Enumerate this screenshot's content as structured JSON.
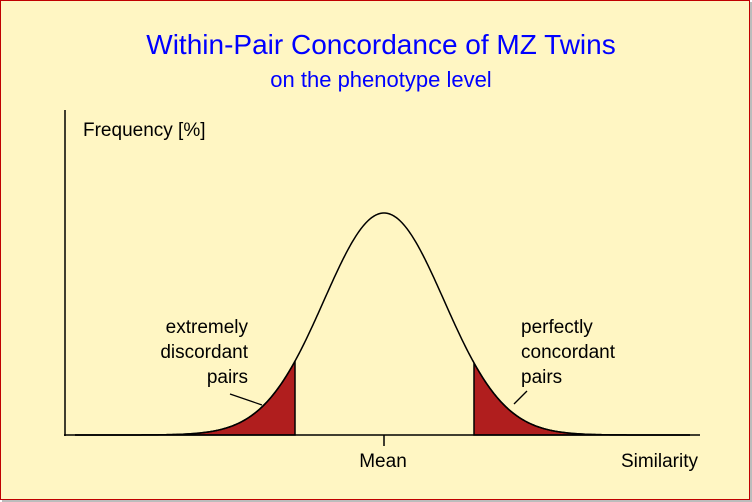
{
  "title": "Within-Pair Concordance of MZ Twins",
  "subtitle": "on the phenotype level",
  "y_axis_label": "Frequency [%]",
  "x_axis_label": "Similarity",
  "mean_label": "Mean",
  "left_region_label": [
    "extremely",
    "discordant",
    "pairs"
  ],
  "right_region_label": [
    "perfectly",
    "concordant",
    "pairs"
  ],
  "colors": {
    "background": "#fff6c3",
    "title": "#0000ff",
    "shaded_tails": "#b01e1e",
    "border": "#c00000"
  }
}
